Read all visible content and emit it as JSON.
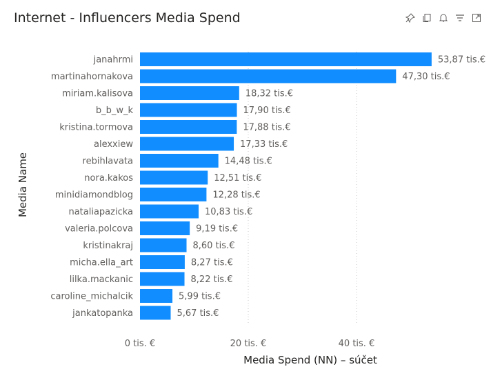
{
  "header": {
    "title": "Internet - Influencers Media Spend",
    "icons": [
      "pin-icon",
      "copy-icon",
      "bell-icon",
      "filter-icon",
      "focus-mode-icon"
    ]
  },
  "colors": {
    "bar": "#118DFF"
  },
  "chart_data": {
    "type": "bar",
    "orientation": "horizontal",
    "title": "Internet - Influencers Media Spend",
    "xlabel": "Media Spend (NN) – súčet",
    "ylabel": "Media Name",
    "xlim": [
      0,
      58
    ],
    "xticks": [
      0,
      20,
      40
    ],
    "xtick_labels": [
      "0 tis. €",
      "20 tis. €",
      "40 tis. €"
    ],
    "grid": "vertical dotted",
    "categories": [
      "janahrmi",
      "martinahornakova",
      "miriam.kalisova",
      "b_b_w_k",
      "kristina.tormova",
      "alexxiew",
      "rebihlavata",
      "nora.kakos",
      "minidiamondblog",
      "nataliapazicka",
      "valeria.polcova",
      "kristinakraj",
      "micha.ella_art",
      "lilka.mackanic",
      "caroline_michalcik",
      "jankatopanka"
    ],
    "values": [
      53.87,
      47.3,
      18.32,
      17.9,
      17.88,
      17.33,
      14.48,
      12.51,
      12.28,
      10.83,
      9.19,
      8.6,
      8.27,
      8.22,
      5.99,
      5.67
    ],
    "data_labels": [
      "53,87 tis.€",
      "47,30 tis.€",
      "18,32 tis.€",
      "17,90 tis.€",
      "17,88 tis.€",
      "17,33 tis.€",
      "14,48 tis.€",
      "12,51 tis.€",
      "12,28 tis.€",
      "10,83 tis.€",
      "9,19 tis.€",
      "8,60 tis.€",
      "8,27 tis.€",
      "8,22 tis.€",
      "5,99 tis.€",
      "5,67 tis.€"
    ]
  }
}
